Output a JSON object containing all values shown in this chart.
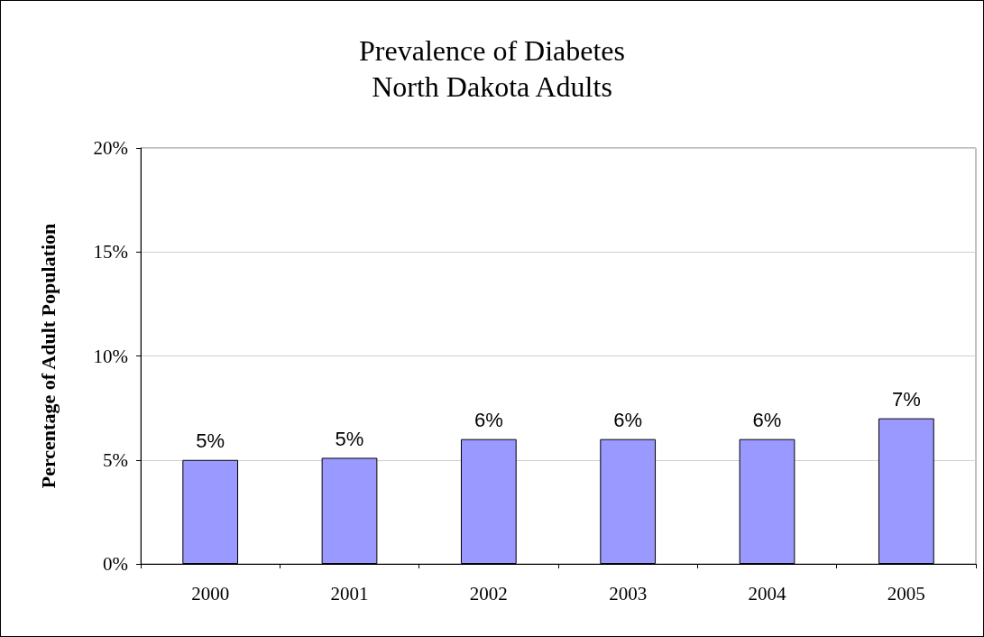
{
  "chart_data": {
    "type": "bar",
    "title": "Prevalence of Diabetes\nNorth Dakota Adults",
    "ylabel": "Percentage of Adult Population",
    "categories": [
      "2000",
      "2001",
      "2002",
      "2003",
      "2004",
      "2005"
    ],
    "values": [
      5,
      5.1,
      6,
      6,
      6,
      7
    ],
    "value_labels": [
      "5%",
      "5%",
      "6%",
      "6%",
      "6%",
      "7%"
    ],
    "color": "#9999ff",
    "ylim": [
      0,
      20
    ],
    "yticks": [
      {
        "value": 0,
        "label": "0%"
      },
      {
        "value": 5,
        "label": "5%"
      },
      {
        "value": 10,
        "label": "10%"
      },
      {
        "value": 15,
        "label": "15%"
      },
      {
        "value": 20,
        "label": "20%"
      }
    ],
    "grid": "y"
  }
}
